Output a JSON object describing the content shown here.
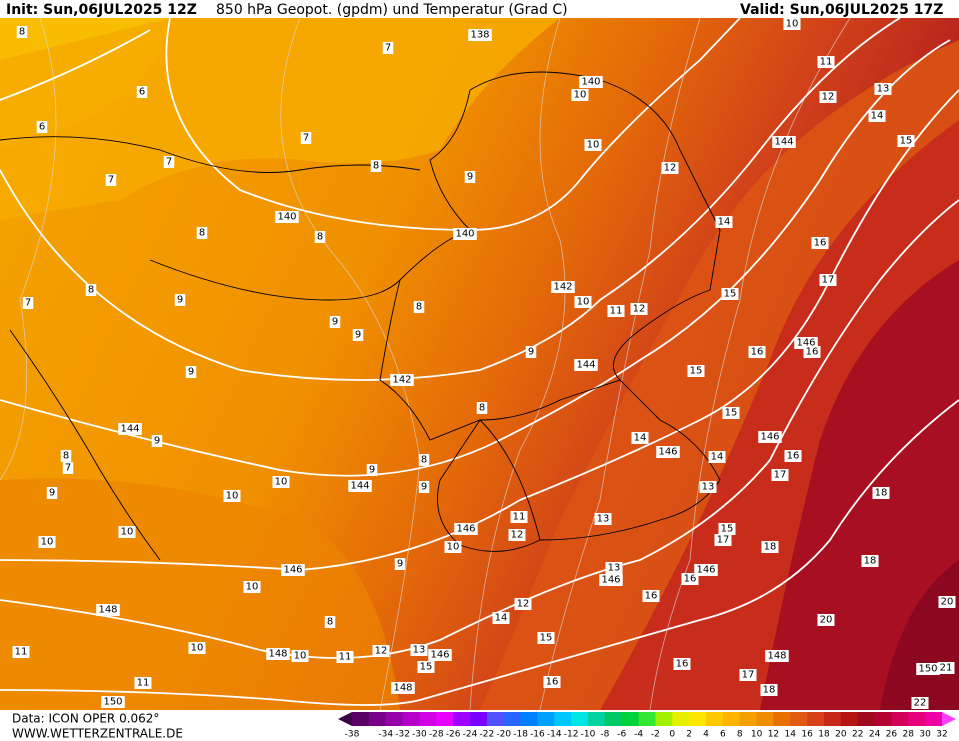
{
  "header": {
    "init": "Init: Sun,06JUL2025 12Z",
    "title": "850 hPa Geopot. (gpdm) und Temperatur (Grad C)",
    "valid": "Valid: Sun,06JUL2025 17Z"
  },
  "footer": {
    "source": "Data: ICON OPER 0.062°",
    "site": "WWW.WETTERZENTRALE.DE"
  },
  "labels": [
    8,
    7,
    138,
    10,
    6,
    140,
    10,
    11,
    12,
    13,
    6,
    7,
    10,
    144,
    14,
    15,
    7,
    8,
    9,
    12,
    7,
    140,
    8,
    140,
    8,
    14,
    16,
    17,
    8,
    9,
    142,
    10,
    11,
    12,
    15,
    7,
    9,
    8,
    9,
    146,
    16,
    16,
    9,
    144,
    15,
    9,
    142,
    8,
    15,
    144,
    9,
    14,
    146,
    146,
    14,
    16,
    8,
    7,
    8,
    9,
    17,
    10,
    144,
    9,
    13,
    18,
    10,
    9,
    11,
    13,
    146,
    12,
    15,
    17,
    10,
    10,
    18,
    10,
    9,
    146,
    13,
    146,
    16,
    146,
    18,
    10,
    16,
    12,
    20,
    148,
    14,
    8,
    20,
    15,
    10,
    12,
    13,
    148,
    10,
    146,
    11,
    11,
    15,
    16,
    148,
    150,
    21,
    17,
    11,
    16,
    148,
    18,
    150,
    22
  ],
  "colorbar": {
    "ticks": [
      -38,
      -34,
      -32,
      -30,
      -28,
      -26,
      -24,
      -22,
      -20,
      -18,
      -16,
      -14,
      -12,
      -10,
      -8,
      -6,
      -4,
      -2,
      0,
      2,
      4,
      6,
      8,
      10,
      12,
      14,
      16,
      18,
      20,
      22,
      24,
      26,
      28,
      30,
      32
    ],
    "colors": [
      "#3c0046",
      "#5a0064",
      "#78008a",
      "#9600a8",
      "#b400c8",
      "#d200e6",
      "#e600ff",
      "#a000ff",
      "#7800ff",
      "#5050ff",
      "#2864ff",
      "#0080ff",
      "#00a0ff",
      "#00c8ff",
      "#00e6e6",
      "#00d2a0",
      "#00c864",
      "#00d23c",
      "#32e632",
      "#a0f000",
      "#e6f000",
      "#ffe600",
      "#ffc800",
      "#ffb400",
      "#f5a000",
      "#f08c00",
      "#e87000",
      "#e05a10",
      "#d84018",
      "#c82818",
      "#b41414",
      "#a00a1e",
      "#b40032",
      "#d2005a",
      "#e6007d",
      "#f000a5",
      "#ff3cff"
    ]
  }
}
